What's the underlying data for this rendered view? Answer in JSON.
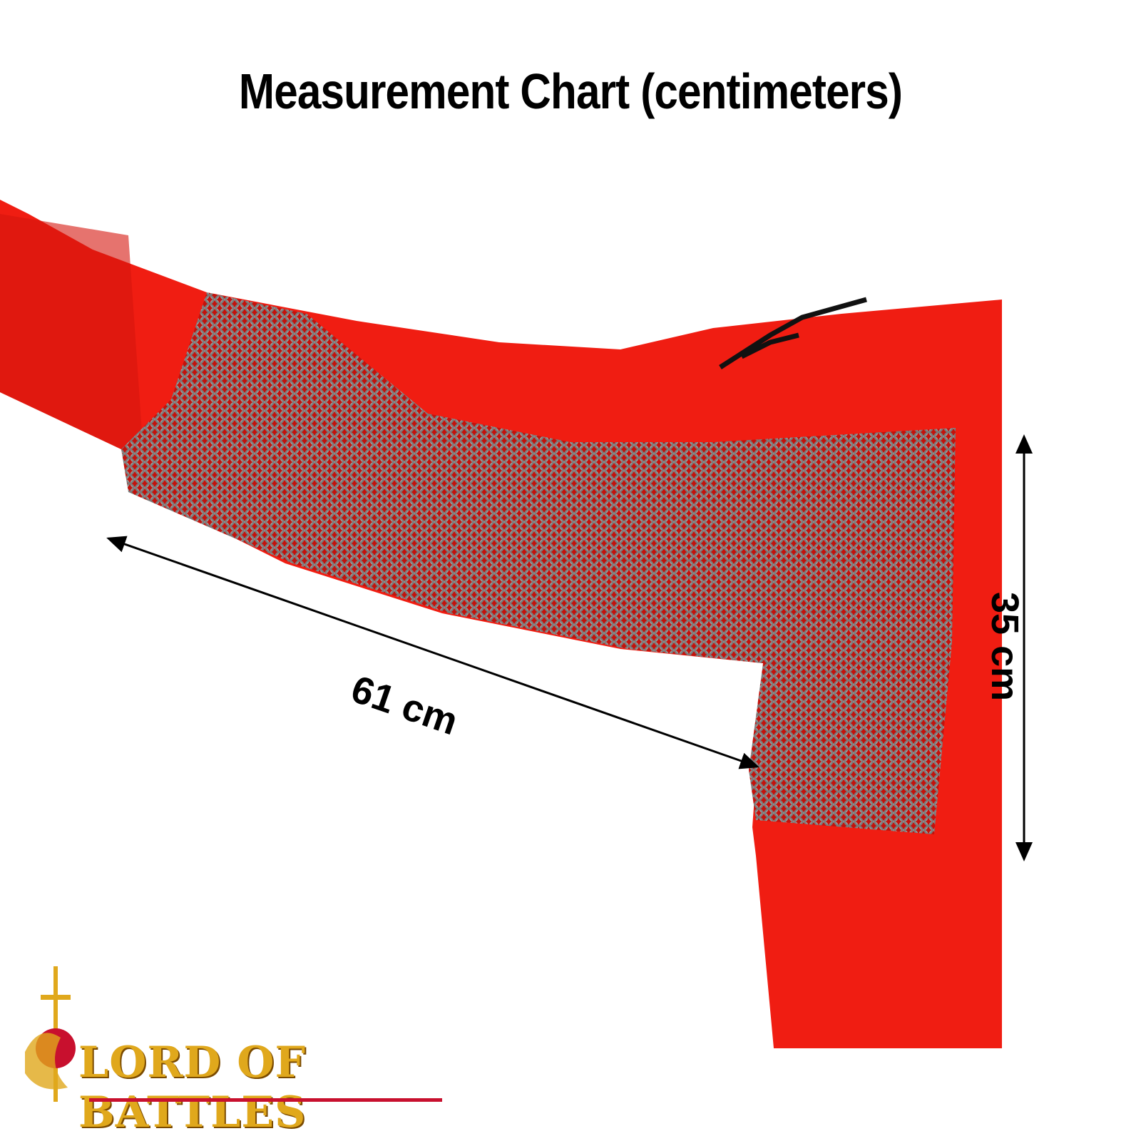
{
  "title": "Measurement Chart (centimeters)",
  "measurements": [
    {
      "label": "61 cm",
      "value": 61,
      "unit": "cm",
      "orientation": "diagonal"
    },
    {
      "label": "35 cm",
      "value": 35,
      "unit": "cm",
      "orientation": "vertical"
    }
  ],
  "logo": {
    "text": "LORD OF BATTLES"
  },
  "colors": {
    "garment": "#f01d12",
    "mail": "#8a8a8a",
    "logo_gold": "#e0a81c",
    "logo_red": "#c8102e"
  }
}
